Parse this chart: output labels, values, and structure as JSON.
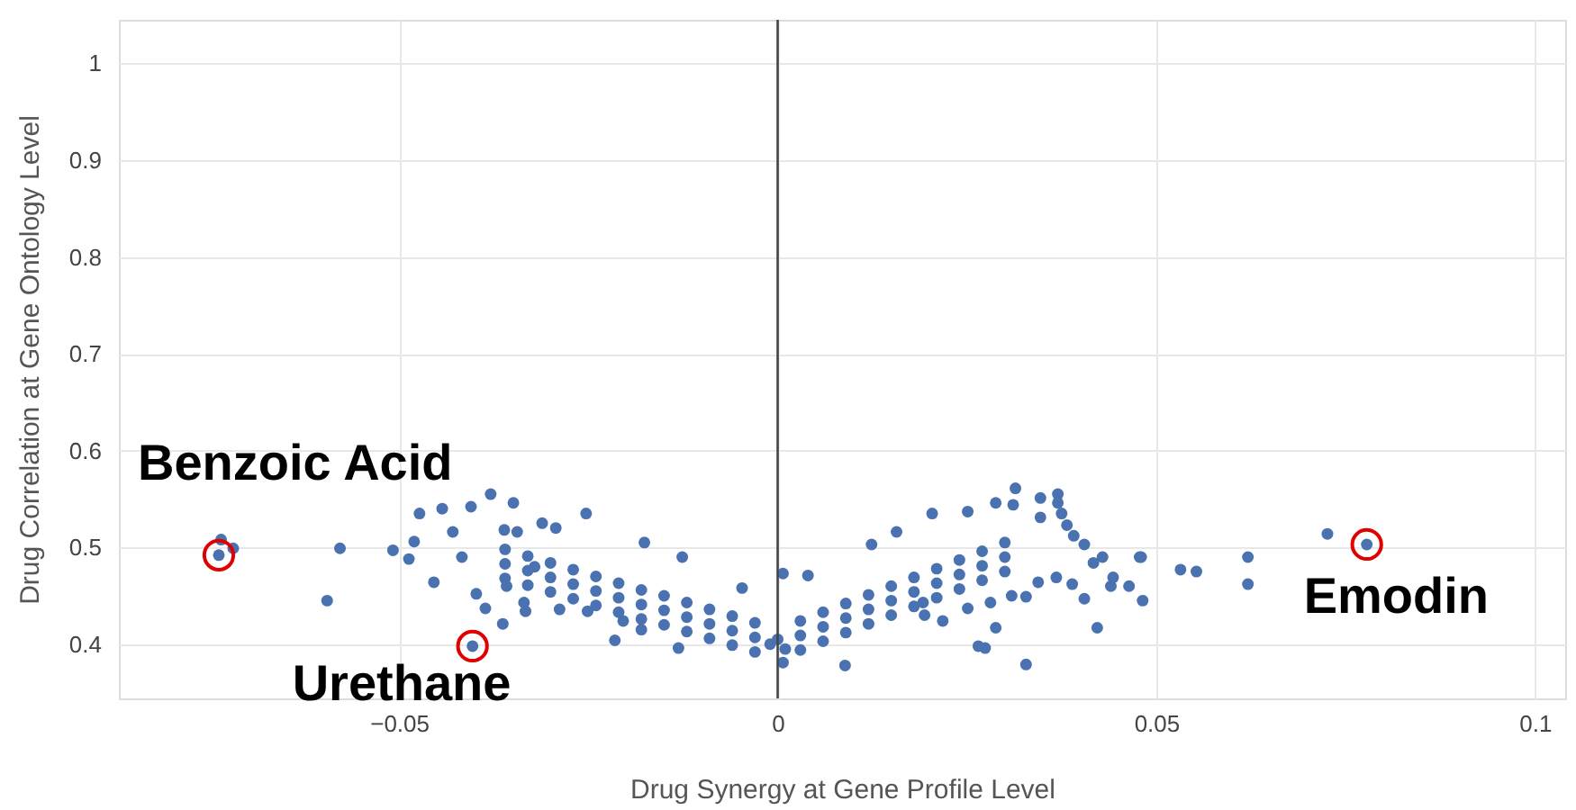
{
  "chart_data": {
    "type": "scatter",
    "xlabel": "Drug Synergy at Gene Profile Level",
    "ylabel": "Drug Correlation at Gene Ontology Level",
    "xlim": [
      -0.087,
      0.104
    ],
    "ylim": [
      0.344,
      1.045
    ],
    "xticks": [
      {
        "value": -0.05,
        "label": "−0.05"
      },
      0,
      0.05,
      0.1
    ],
    "yticks": [
      0.4,
      0.5,
      0.6,
      0.7,
      0.8,
      0.9,
      1
    ],
    "grid": true,
    "ref_lines": [
      {
        "axis": "x",
        "value": 0,
        "color": "#444444"
      }
    ],
    "series": [
      {
        "color": "#4a72b0",
        "x": [
          -0.0738,
          -0.0403,
          0.0778,
          -0.0735,
          -0.0719,
          -0.0595,
          -0.0578,
          -0.0508,
          -0.048,
          -0.0487,
          -0.0473,
          -0.0443,
          -0.0429,
          -0.0454,
          -0.0405,
          -0.0379,
          -0.0349,
          -0.0363,
          -0.0386,
          -0.0398,
          -0.0417,
          -0.0361,
          -0.0344,
          -0.0335,
          -0.0333,
          -0.0311,
          -0.0293,
          -0.0288,
          -0.0253,
          -0.0251,
          -0.0321,
          -0.0358,
          0.0314,
          0.037,
          0.037,
          0.0347,
          0.0288,
          0.0311,
          0.0251,
          0.0204,
          0.0347,
          0.0375,
          0.0382,
          0.0391,
          0.0405,
          0.0429,
          0.0417,
          0.0478,
          0.0532,
          0.0553,
          0.0482,
          0.0464,
          0.044,
          0.0443,
          0.0405,
          0.0422,
          0.0389,
          0.0368,
          0.0344,
          0.0328,
          0.0309,
          0.0288,
          0.0265,
          0.0274,
          0.0328,
          0.0089,
          0.0281,
          0.0251,
          0.0218,
          0.0194,
          0.0192,
          0.0726,
          0.0621,
          0.0621,
          0.048,
          -0.0215,
          -0.0131,
          0.0007,
          0.004,
          0.0007,
          -0.0047,
          -0.0176,
          -0.0126,
          0.0124,
          0.0157,
          -0.0204,
          -0.018,
          -0.036,
          -0.036,
          -0.036,
          -0.033,
          -0.033,
          -0.033,
          -0.03,
          -0.03,
          -0.03,
          -0.027,
          -0.027,
          -0.027,
          -0.024,
          -0.024,
          -0.024,
          -0.021,
          -0.021,
          -0.021,
          -0.018,
          -0.018,
          -0.018,
          -0.015,
          -0.015,
          -0.015,
          -0.012,
          -0.012,
          -0.012,
          -0.009,
          -0.009,
          -0.009,
          -0.006,
          -0.006,
          -0.006,
          -0.003,
          -0.003,
          -0.003,
          0.003,
          0.003,
          0.003,
          0.006,
          0.006,
          0.006,
          0.009,
          0.009,
          0.009,
          0.012,
          0.012,
          0.012,
          0.015,
          0.015,
          0.015,
          0.018,
          0.018,
          0.018,
          0.021,
          0.021,
          0.021,
          0.024,
          0.024,
          0.024,
          0.027,
          0.027,
          0.027,
          0.03,
          0.03,
          0.03,
          0,
          0.001,
          -0.001
        ],
        "values": [
          0.492,
          0.398,
          0.503,
          0.508,
          0.499,
          0.445,
          0.499,
          0.497,
          0.506,
          0.488,
          0.535,
          0.54,
          0.516,
          0.464,
          0.542,
          0.555,
          0.546,
          0.421,
          0.437,
          0.452,
          0.49,
          0.518,
          0.516,
          0.443,
          0.434,
          0.525,
          0.52,
          0.436,
          0.535,
          0.434,
          0.48,
          0.46,
          0.561,
          0.555,
          0.546,
          0.551,
          0.546,
          0.544,
          0.537,
          0.535,
          0.531,
          0.535,
          0.523,
          0.512,
          0.503,
          0.49,
          0.484,
          0.49,
          0.477,
          0.475,
          0.445,
          0.46,
          0.46,
          0.469,
          0.447,
          0.417,
          0.462,
          0.469,
          0.464,
          0.449,
          0.45,
          0.417,
          0.398,
          0.396,
          0.379,
          0.378,
          0.443,
          0.437,
          0.424,
          0.43,
          0.443,
          0.514,
          0.49,
          0.462,
          0.49,
          0.404,
          0.396,
          0.381,
          0.471,
          0.473,
          0.458,
          0.505,
          0.49,
          0.503,
          0.516,
          0.424,
          0.415,
          0.483,
          0.498,
          0.468,
          0.476,
          0.491,
          0.461,
          0.469,
          0.484,
          0.454,
          0.462,
          0.477,
          0.447,
          0.455,
          0.47,
          0.44,
          0.448,
          0.463,
          0.433,
          0.441,
          0.456,
          0.426,
          0.435,
          0.45,
          0.42,
          0.428,
          0.443,
          0.413,
          0.421,
          0.436,
          0.406,
          0.414,
          0.429,
          0.399,
          0.407,
          0.422,
          0.392,
          0.409,
          0.424,
          0.394,
          0.418,
          0.433,
          0.403,
          0.427,
          0.442,
          0.412,
          0.436,
          0.451,
          0.421,
          0.445,
          0.46,
          0.43,
          0.454,
          0.469,
          0.439,
          0.463,
          0.478,
          0.448,
          0.472,
          0.487,
          0.457,
          0.481,
          0.496,
          0.466,
          0.49,
          0.505,
          0.475,
          0.405,
          0.395,
          0.4
        ]
      }
    ],
    "annotations": [
      {
        "text": "Benzoic Acid",
        "x": -0.0738,
        "y": 0.492
      },
      {
        "text": "Urethane",
        "x": -0.0403,
        "y": 0.398
      },
      {
        "text": "Emodin",
        "x": 0.0778,
        "y": 0.503
      }
    ]
  }
}
